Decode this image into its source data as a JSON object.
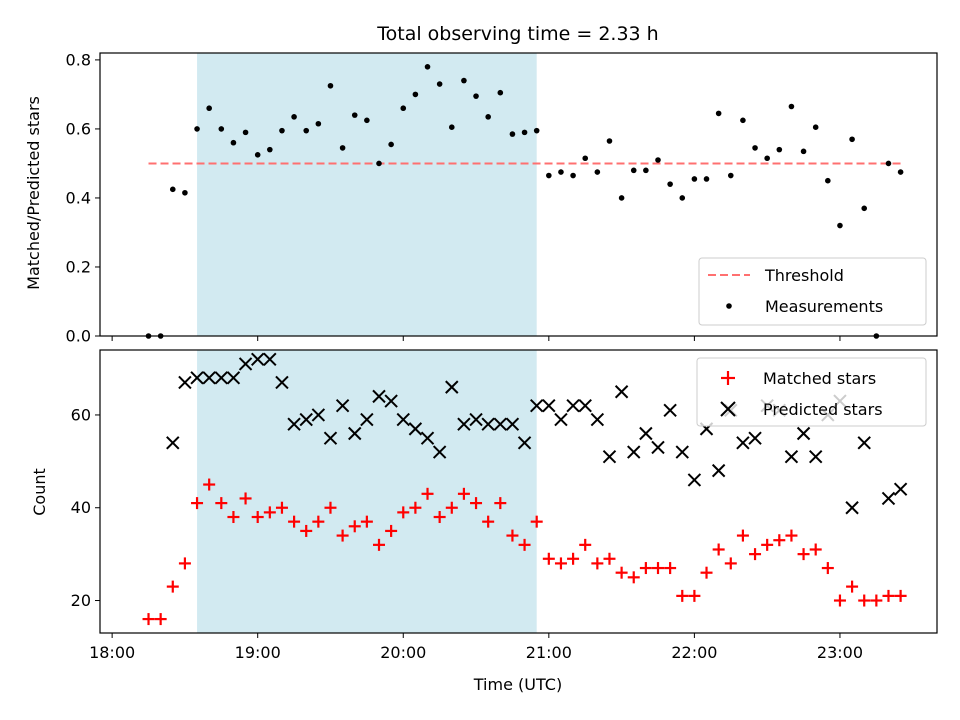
{
  "chart_data": [
    {
      "type": "scatter",
      "title": "Total observing time = 2.33 h",
      "xlabel": "",
      "ylabel": "Matched/Predicted stars",
      "ylim": [
        0,
        0.82
      ],
      "yticks": [
        "0.0",
        "0.2",
        "0.4",
        "0.6",
        "0.8"
      ],
      "shaded_span": [
        "18:35",
        "20:55"
      ],
      "shaded_color": "#add8e6",
      "grid": false,
      "legend_position": "lower-right",
      "threshold": {
        "name": "Threshold",
        "value": 0.5,
        "x_start": "18:15",
        "x_end": "23:25",
        "color": "#ff7070",
        "style": "dashed"
      },
      "series": [
        {
          "name": "Measurements",
          "color": "#000000",
          "marker": "dot",
          "x": [
            "18:15",
            "18:20",
            "18:25",
            "18:30",
            "18:35",
            "18:40",
            "18:45",
            "18:50",
            "18:55",
            "19:00",
            "19:05",
            "19:10",
            "19:15",
            "19:20",
            "19:25",
            "19:30",
            "19:35",
            "19:40",
            "19:45",
            "19:50",
            "19:55",
            "20:00",
            "20:05",
            "20:10",
            "20:15",
            "20:20",
            "20:25",
            "20:30",
            "20:35",
            "20:40",
            "20:45",
            "20:50",
            "20:55",
            "21:00",
            "21:05",
            "21:10",
            "21:15",
            "21:20",
            "21:25",
            "21:30",
            "21:35",
            "21:40",
            "21:45",
            "21:50",
            "21:55",
            "22:00",
            "22:05",
            "22:10",
            "22:15",
            "22:20",
            "22:25",
            "22:30",
            "22:35",
            "22:40",
            "22:45",
            "22:50",
            "22:55",
            "23:00",
            "23:05",
            "23:10",
            "23:15",
            "23:20",
            "23:25"
          ],
          "values": [
            0.0,
            0.0,
            0.425,
            0.415,
            0.6,
            0.66,
            0.6,
            0.56,
            0.59,
            0.525,
            0.54,
            0.595,
            0.635,
            0.595,
            0.615,
            0.725,
            0.545,
            0.64,
            0.625,
            0.5,
            0.555,
            0.66,
            0.7,
            0.78,
            0.73,
            0.605,
            0.74,
            0.695,
            0.635,
            0.705,
            0.585,
            0.59,
            0.595,
            0.465,
            0.475,
            0.465,
            0.515,
            0.475,
            0.565,
            0.4,
            0.48,
            0.48,
            0.51,
            0.44,
            0.4,
            0.455,
            0.455,
            0.645,
            0.465,
            0.625,
            0.545,
            0.515,
            0.54,
            0.665,
            0.535,
            0.605,
            0.45,
            0.32,
            0.57,
            0.37,
            0.0,
            0.5,
            0.475
          ]
        }
      ]
    },
    {
      "type": "scatter",
      "title": "",
      "xlabel": "Time (UTC)",
      "ylabel": "Count",
      "ylim": [
        13,
        74
      ],
      "yticks": [
        "20",
        "40",
        "60"
      ],
      "xlim": [
        "17:55",
        "23:40"
      ],
      "xticks": [
        "18:00",
        "19:00",
        "20:00",
        "21:00",
        "22:00",
        "23:00"
      ],
      "shaded_span": [
        "18:35",
        "20:55"
      ],
      "shaded_color": "#add8e6",
      "grid": false,
      "legend_position": "upper-right",
      "x": [
        "18:15",
        "18:20",
        "18:25",
        "18:30",
        "18:35",
        "18:40",
        "18:45",
        "18:50",
        "18:55",
        "19:00",
        "19:05",
        "19:10",
        "19:15",
        "19:20",
        "19:25",
        "19:30",
        "19:35",
        "19:40",
        "19:45",
        "19:50",
        "19:55",
        "20:00",
        "20:05",
        "20:10",
        "20:15",
        "20:20",
        "20:25",
        "20:30",
        "20:35",
        "20:40",
        "20:45",
        "20:50",
        "20:55",
        "21:00",
        "21:05",
        "21:10",
        "21:15",
        "21:20",
        "21:25",
        "21:30",
        "21:35",
        "21:40",
        "21:45",
        "21:50",
        "21:55",
        "22:00",
        "22:05",
        "22:10",
        "22:15",
        "22:20",
        "22:25",
        "22:30",
        "22:35",
        "22:40",
        "22:45",
        "22:50",
        "22:55",
        "23:00",
        "23:05",
        "23:10",
        "23:15",
        "23:20",
        "23:25"
      ],
      "series": [
        {
          "name": "Matched stars",
          "color": "#ff0000",
          "marker": "plus",
          "values": [
            16,
            16,
            23,
            28,
            41,
            45,
            41,
            38,
            42,
            38,
            39,
            40,
            37,
            35,
            37,
            40,
            34,
            36,
            37,
            32,
            35,
            39,
            40,
            43,
            38,
            40,
            43,
            41,
            37,
            41,
            34,
            32,
            37,
            29,
            28,
            29,
            32,
            28,
            29,
            26,
            25,
            27,
            27,
            27,
            21,
            21,
            26,
            31,
            28,
            34,
            30,
            32,
            33,
            34,
            30,
            31,
            27,
            20,
            23,
            20,
            20,
            21,
            21
          ]
        },
        {
          "name": "Predicted stars",
          "color": "#000000",
          "marker": "x",
          "values": [
            null,
            null,
            54,
            67,
            68,
            68,
            68,
            68,
            71,
            72,
            72,
            67,
            58,
            59,
            60,
            55,
            62,
            56,
            59,
            64,
            63,
            59,
            57,
            55,
            52,
            66,
            58,
            59,
            58,
            58,
            58,
            54,
            62,
            62,
            59,
            62,
            62,
            59,
            51,
            65,
            52,
            56,
            53,
            61,
            52,
            46,
            57,
            48,
            61,
            54,
            55,
            62,
            61,
            51,
            56,
            51,
            60,
            63,
            40,
            54,
            null,
            42,
            44
          ]
        }
      ]
    }
  ]
}
